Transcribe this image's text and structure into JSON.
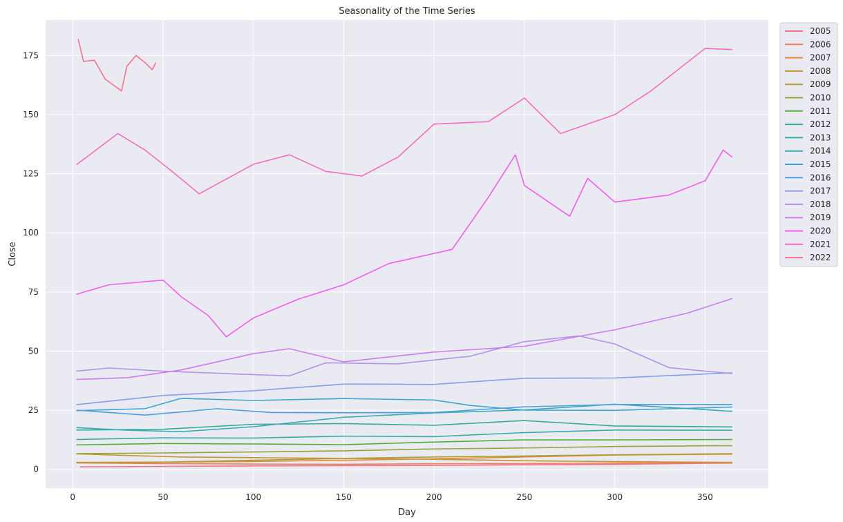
{
  "chart_data": {
    "type": "line",
    "title": "Seasonality of the Time Series",
    "xlabel": "Day",
    "ylabel": "Close",
    "xlim": [
      -15,
      385
    ],
    "ylim": [
      -8,
      190
    ],
    "xticks": [
      0,
      50,
      100,
      150,
      200,
      250,
      300,
      350
    ],
    "yticks": [
      0,
      25,
      50,
      75,
      100,
      125,
      150,
      175
    ],
    "grid": true,
    "legend_position": "outside-right-top",
    "background": "#eaeaf2",
    "series": [
      {
        "name": "2005",
        "color": "#f77189",
        "points": [
          [
            4,
            1.0
          ],
          [
            50,
            1.2
          ],
          [
            100,
            1.4
          ],
          [
            150,
            1.5
          ],
          [
            200,
            1.6
          ],
          [
            250,
            1.9
          ],
          [
            300,
            2.1
          ],
          [
            365,
            2.6
          ]
        ]
      },
      {
        "name": "2006",
        "color": "#f27d55",
        "points": [
          [
            3,
            2.7
          ],
          [
            50,
            2.4
          ],
          [
            100,
            2.2
          ],
          [
            150,
            2.1
          ],
          [
            200,
            2.3
          ],
          [
            250,
            2.4
          ],
          [
            300,
            2.6
          ],
          [
            365,
            2.7
          ]
        ]
      },
      {
        "name": "2007",
        "color": "#e28932",
        "points": [
          [
            2,
            2.9
          ],
          [
            50,
            3.0
          ],
          [
            100,
            3.3
          ],
          [
            150,
            3.8
          ],
          [
            200,
            4.4
          ],
          [
            250,
            5.2
          ],
          [
            300,
            6.0
          ],
          [
            365,
            6.4
          ]
        ]
      },
      {
        "name": "2008",
        "color": "#c39532",
        "points": [
          [
            2,
            6.5
          ],
          [
            30,
            5.8
          ],
          [
            60,
            5.2
          ],
          [
            100,
            4.9
          ],
          [
            150,
            4.6
          ],
          [
            200,
            4.2
          ],
          [
            250,
            3.6
          ],
          [
            300,
            3.2
          ],
          [
            365,
            2.9
          ]
        ]
      },
      {
        "name": "2009",
        "color": "#ae9d31",
        "points": [
          [
            2,
            2.7
          ],
          [
            50,
            3.0
          ],
          [
            100,
            3.8
          ],
          [
            150,
            4.6
          ],
          [
            200,
            5.2
          ],
          [
            250,
            5.6
          ],
          [
            300,
            6.1
          ],
          [
            365,
            6.6
          ]
        ]
      },
      {
        "name": "2010",
        "color": "#97a431",
        "points": [
          [
            2,
            6.6
          ],
          [
            50,
            6.9
          ],
          [
            100,
            7.3
          ],
          [
            150,
            7.8
          ],
          [
            200,
            8.6
          ],
          [
            250,
            9.0
          ],
          [
            300,
            9.6
          ],
          [
            365,
            10.0
          ]
        ]
      },
      {
        "name": "2011",
        "color": "#50b131",
        "points": [
          [
            2,
            10.3
          ],
          [
            50,
            10.9
          ],
          [
            100,
            10.7
          ],
          [
            150,
            10.4
          ],
          [
            200,
            11.5
          ],
          [
            250,
            12.4
          ],
          [
            300,
            12.4
          ],
          [
            365,
            12.6
          ]
        ]
      },
      {
        "name": "2012",
        "color": "#34ae91",
        "points": [
          [
            2,
            16.6
          ],
          [
            50,
            16.9
          ],
          [
            100,
            19.0
          ],
          [
            150,
            19.3
          ],
          [
            200,
            18.6
          ],
          [
            250,
            20.6
          ],
          [
            300,
            18.3
          ],
          [
            365,
            17.9
          ]
        ]
      },
      {
        "name": "2013",
        "color": "#36ada4",
        "points": [
          [
            2,
            12.6
          ],
          [
            50,
            13.3
          ],
          [
            100,
            13.2
          ],
          [
            150,
            14.0
          ],
          [
            200,
            13.8
          ],
          [
            250,
            15.5
          ],
          [
            300,
            16.6
          ],
          [
            365,
            16.5
          ]
        ]
      },
      {
        "name": "2014",
        "color": "#37abb5",
        "points": [
          [
            2,
            17.6
          ],
          [
            30,
            16.5
          ],
          [
            60,
            15.9
          ],
          [
            100,
            18.0
          ],
          [
            150,
            22.0
          ],
          [
            200,
            23.8
          ],
          [
            250,
            25.1
          ],
          [
            300,
            27.5
          ],
          [
            365,
            24.5
          ]
        ]
      },
      {
        "name": "2015",
        "color": "#39a7d0",
        "points": [
          [
            2,
            24.8
          ],
          [
            40,
            25.6
          ],
          [
            60,
            30.0
          ],
          [
            100,
            29.1
          ],
          [
            150,
            29.9
          ],
          [
            200,
            29.3
          ],
          [
            220,
            27.0
          ],
          [
            250,
            25.0
          ],
          [
            300,
            24.9
          ],
          [
            365,
            26.3
          ]
        ]
      },
      {
        "name": "2016",
        "color": "#4da0e0",
        "points": [
          [
            2,
            25.0
          ],
          [
            40,
            22.9
          ],
          [
            80,
            25.6
          ],
          [
            110,
            24.0
          ],
          [
            150,
            23.9
          ],
          [
            200,
            24.0
          ],
          [
            250,
            26.4
          ],
          [
            300,
            27.4
          ],
          [
            365,
            27.4
          ]
        ]
      },
      {
        "name": "2017",
        "color": "#849eeb",
        "points": [
          [
            2,
            27.3
          ],
          [
            50,
            31.2
          ],
          [
            100,
            33.2
          ],
          [
            150,
            36.0
          ],
          [
            200,
            35.9
          ],
          [
            250,
            38.5
          ],
          [
            300,
            38.6
          ],
          [
            365,
            40.8
          ]
        ]
      },
      {
        "name": "2018",
        "color": "#b090ea",
        "points": [
          [
            2,
            41.5
          ],
          [
            20,
            42.8
          ],
          [
            50,
            41.5
          ],
          [
            90,
            40.3
          ],
          [
            120,
            39.5
          ],
          [
            140,
            45.0
          ],
          [
            180,
            44.6
          ],
          [
            220,
            47.8
          ],
          [
            250,
            54.0
          ],
          [
            280,
            56.4
          ],
          [
            300,
            53.0
          ],
          [
            330,
            43.0
          ],
          [
            350,
            41.5
          ],
          [
            365,
            40.5
          ]
        ]
      },
      {
        "name": "2019",
        "color": "#cc7af4",
        "points": [
          [
            2,
            38.0
          ],
          [
            30,
            38.7
          ],
          [
            60,
            42.0
          ],
          [
            100,
            48.9
          ],
          [
            120,
            51.0
          ],
          [
            150,
            45.4
          ],
          [
            200,
            49.6
          ],
          [
            250,
            52.0
          ],
          [
            300,
            59.0
          ],
          [
            340,
            66.0
          ],
          [
            365,
            72.2
          ]
        ]
      },
      {
        "name": "2020",
        "color": "#f45cf2",
        "points": [
          [
            2,
            74.0
          ],
          [
            20,
            78.0
          ],
          [
            50,
            80.0
          ],
          [
            60,
            73.0
          ],
          [
            75,
            65.0
          ],
          [
            85,
            56.0
          ],
          [
            100,
            64.0
          ],
          [
            125,
            72.0
          ],
          [
            150,
            78.0
          ],
          [
            175,
            87.0
          ],
          [
            210,
            93.0
          ],
          [
            230,
            115.0
          ],
          [
            245,
            133.0
          ],
          [
            250,
            120.0
          ],
          [
            275,
            107.0
          ],
          [
            285,
            123.0
          ],
          [
            300,
            113.0
          ],
          [
            330,
            116.0
          ],
          [
            350,
            122.0
          ],
          [
            360,
            135.0
          ],
          [
            365,
            132.0
          ]
        ]
      },
      {
        "name": "2021",
        "color": "#f66bbf",
        "points": [
          [
            2,
            128.8
          ],
          [
            25,
            142.0
          ],
          [
            40,
            135.0
          ],
          [
            55,
            126.0
          ],
          [
            70,
            116.5
          ],
          [
            100,
            129.0
          ],
          [
            120,
            133.0
          ],
          [
            140,
            126.0
          ],
          [
            160,
            124.0
          ],
          [
            180,
            132.0
          ],
          [
            200,
            146.0
          ],
          [
            230,
            147.0
          ],
          [
            250,
            157.0
          ],
          [
            270,
            142.0
          ],
          [
            300,
            150.0
          ],
          [
            320,
            160.0
          ],
          [
            350,
            178.0
          ],
          [
            365,
            177.5
          ]
        ]
      },
      {
        "name": "2022",
        "color": "#f77189",
        "points": [
          [
            3,
            182.0
          ],
          [
            6,
            172.5
          ],
          [
            12,
            173.0
          ],
          [
            18,
            165.0
          ],
          [
            27,
            160.0
          ],
          [
            30,
            170.5
          ],
          [
            35,
            175.0
          ],
          [
            40,
            172.0
          ],
          [
            44,
            169.0
          ],
          [
            46,
            172.0
          ]
        ]
      }
    ]
  }
}
